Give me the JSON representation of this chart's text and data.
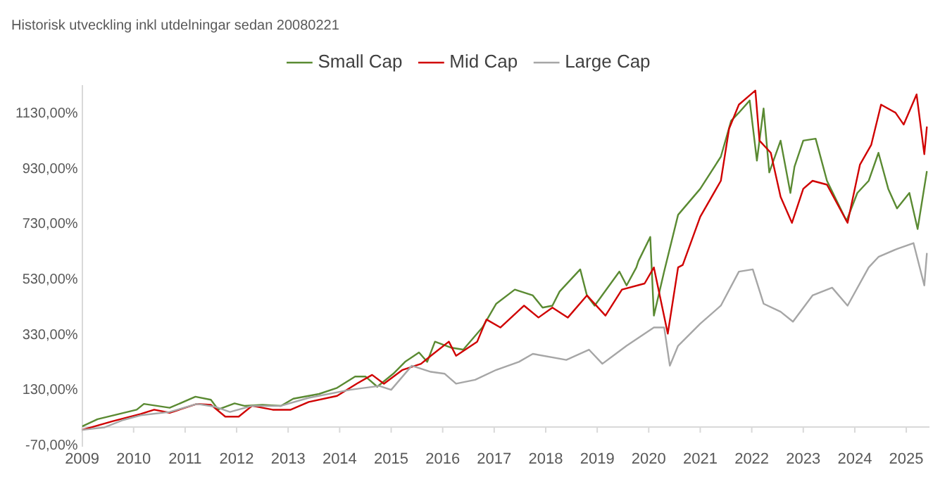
{
  "chart_data": {
    "type": "line",
    "title": "Historisk utveckling inkl utdelningar sedan 20080221",
    "xlim": [
      2009,
      2025.45
    ],
    "xticks": [
      2009,
      2010,
      2011,
      2012,
      2013,
      2014,
      2015,
      2016,
      2017,
      2018,
      2019,
      2020,
      2021,
      2022,
      2023,
      2024,
      2025
    ],
    "ylim": [
      -70,
      1230
    ],
    "yticks": [
      {
        "value": -70,
        "label": "-70,00%"
      },
      {
        "value": 130,
        "label": "130,00%"
      },
      {
        "value": 330,
        "label": "330,00%"
      },
      {
        "value": 530,
        "label": "530,00%"
      },
      {
        "value": 730,
        "label": "730,00%"
      },
      {
        "value": 930,
        "label": "930,00%"
      },
      {
        "value": 1130,
        "label": "1130,00%"
      }
    ],
    "grid": false,
    "legend": "top",
    "marker": "none",
    "line_style": "solid",
    "series": [
      {
        "name": "Small Cap",
        "color": "#5a8a32",
        "x": [
          2009.0,
          2009.3,
          2010.06,
          2010.2,
          2010.7,
          2011.2,
          2011.5,
          2011.64,
          2011.96,
          2012.15,
          2012.5,
          2012.86,
          2013.1,
          2013.6,
          2013.95,
          2014.3,
          2014.5,
          2014.73,
          2015.04,
          2015.27,
          2015.54,
          2015.7,
          2015.85,
          2016.17,
          2016.4,
          2016.77,
          2017.04,
          2017.4,
          2017.75,
          2017.94,
          2018.13,
          2018.27,
          2018.67,
          2018.8,
          2018.95,
          2019.43,
          2019.57,
          2019.76,
          2019.8,
          2020.03,
          2020.1,
          2020.3,
          2020.57,
          2021.0,
          2021.4,
          2021.6,
          2021.75,
          2021.96,
          2022.1,
          2022.23,
          2022.34,
          2022.56,
          2022.75,
          2022.83,
          2023.0,
          2023.24,
          2023.46,
          2023.84,
          2024.05,
          2024.27,
          2024.46,
          2024.65,
          2024.82,
          2025.06,
          2025.22,
          2025.4
        ],
        "values": [
          0,
          26,
          60,
          81,
          67,
          107,
          96,
          61,
          83,
          74,
          78,
          74,
          100,
          117,
          139,
          180,
          180,
          143,
          190,
          233,
          267,
          233,
          306,
          284,
          277,
          357,
          443,
          494,
          473,
          429,
          436,
          487,
          567,
          473,
          436,
          559,
          509,
          574,
          597,
          684,
          400,
          560,
          764,
          858,
          974,
          1104,
          1133,
          1177,
          960,
          1148,
          917,
          1032,
          843,
          938,
          1032,
          1039,
          887,
          742,
          843,
          887,
          988,
          858,
          787,
          843,
          713,
          922
        ]
      },
      {
        "name": "Mid Cap",
        "color": "#d00000",
        "x": [
          2009.0,
          2009.6,
          2010.14,
          2010.4,
          2010.7,
          2011.23,
          2011.5,
          2011.78,
          2012.04,
          2012.3,
          2012.7,
          2013.05,
          2013.4,
          2013.95,
          2014.33,
          2014.63,
          2014.86,
          2015.22,
          2015.58,
          2015.77,
          2016.12,
          2016.26,
          2016.67,
          2016.85,
          2017.12,
          2017.58,
          2017.86,
          2018.13,
          2018.43,
          2018.8,
          2019.16,
          2019.48,
          2019.92,
          2020.1,
          2020.37,
          2020.57,
          2020.66,
          2021.0,
          2021.4,
          2021.56,
          2021.75,
          2021.93,
          2022.07,
          2022.15,
          2022.37,
          2022.56,
          2022.78,
          2023.0,
          2023.18,
          2023.46,
          2023.86,
          2024.1,
          2024.32,
          2024.51,
          2024.79,
          2024.95,
          2025.2,
          2025.35,
          2025.4
        ],
        "values": [
          -13,
          19,
          45,
          60,
          49,
          81,
          78,
          35,
          35,
          74,
          60,
          60,
          88,
          110,
          154,
          186,
          154,
          204,
          226,
          255,
          306,
          255,
          306,
          386,
          357,
          436,
          393,
          429,
          393,
          473,
          400,
          494,
          516,
          574,
          335,
          574,
          583,
          757,
          887,
          1075,
          1162,
          1191,
          1213,
          1032,
          988,
          829,
          735,
          858,
          887,
          873,
          735,
          945,
          1017,
          1162,
          1133,
          1090,
          1199,
          983,
          1083
        ]
      },
      {
        "name": "Large Cap",
        "color": "#a6a6a6",
        "x": [
          2009.0,
          2009.43,
          2009.8,
          2010.14,
          2010.7,
          2011.23,
          2011.6,
          2011.87,
          2012.3,
          2012.86,
          2013.4,
          2014.2,
          2014.77,
          2015.0,
          2015.4,
          2015.77,
          2016.04,
          2016.26,
          2016.63,
          2017.04,
          2017.48,
          2017.75,
          2018.4,
          2018.84,
          2019.1,
          2019.57,
          2020.1,
          2020.3,
          2020.41,
          2020.57,
          2021.0,
          2021.4,
          2021.75,
          2022.02,
          2022.23,
          2022.56,
          2022.8,
          2023.18,
          2023.56,
          2023.86,
          2024.27,
          2024.46,
          2024.82,
          2025.14,
          2025.35,
          2025.4
        ],
        "values": [
          -13,
          -4,
          23,
          40,
          52,
          81,
          70,
          52,
          74,
          74,
          103,
          132,
          146,
          132,
          219,
          197,
          190,
          154,
          168,
          204,
          233,
          262,
          240,
          277,
          226,
          291,
          357,
          357,
          219,
          291,
          371,
          436,
          559,
          567,
          443,
          414,
          378,
          473,
          501,
          436,
          574,
          612,
          641,
          662,
          509,
          626
        ]
      }
    ]
  }
}
